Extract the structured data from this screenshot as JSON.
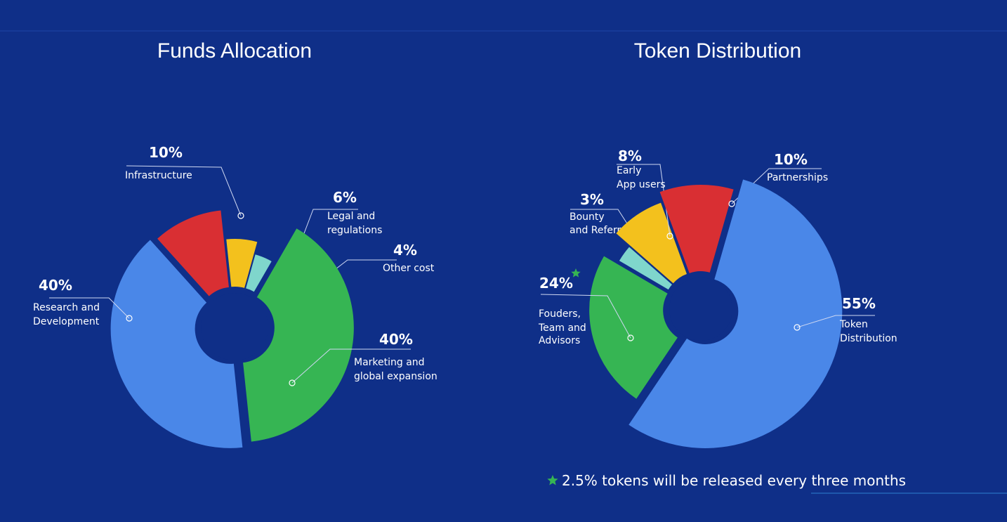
{
  "chart_data": [
    {
      "type": "pie",
      "title": "Funds Allocation",
      "slices": [
        {
          "percent_label": "40%",
          "label_lines": [
            "Research and",
            "Development"
          ],
          "value": 40,
          "color": "#4a87e8"
        },
        {
          "percent_label": "10%",
          "label_lines": [
            "Infrastructure"
          ],
          "value": 10,
          "color": "#d92f33"
        },
        {
          "percent_label": "6%",
          "label_lines": [
            "Legal and",
            "regulations"
          ],
          "value": 6,
          "color": "#f3c11d"
        },
        {
          "percent_label": "4%",
          "label_lines": [
            "Other cost"
          ],
          "value": 4,
          "color": "#7fd6cc"
        },
        {
          "percent_label": "40%",
          "label_lines": [
            "Marketing and",
            "global expansion"
          ],
          "value": 40,
          "color": "#36b553"
        }
      ]
    },
    {
      "type": "pie",
      "title": "Token Distribution",
      "slices": [
        {
          "percent_label": "24%",
          "label_lines": [
            "Fouders,",
            "Team and",
            "Advisors"
          ],
          "value": 24,
          "color": "#36b553",
          "starred": true
        },
        {
          "percent_label": "3%",
          "label_lines": [
            "Bounty",
            "and Referral"
          ],
          "value": 3,
          "color": "#7fd6cc"
        },
        {
          "percent_label": "8%",
          "label_lines": [
            "Early",
            "App users"
          ],
          "value": 8,
          "color": "#f3c11d"
        },
        {
          "percent_label": "10%",
          "label_lines": [
            "Partnerships"
          ],
          "value": 10,
          "color": "#d92f33"
        },
        {
          "percent_label": "55%",
          "label_lines": [
            "Token",
            "Distribution"
          ],
          "value": 55,
          "color": "#4a87e8"
        }
      ],
      "footnote": "2.5% tokens will be released every three months"
    }
  ],
  "colors": {
    "background": "#0f2f88",
    "star": "#36b553"
  }
}
